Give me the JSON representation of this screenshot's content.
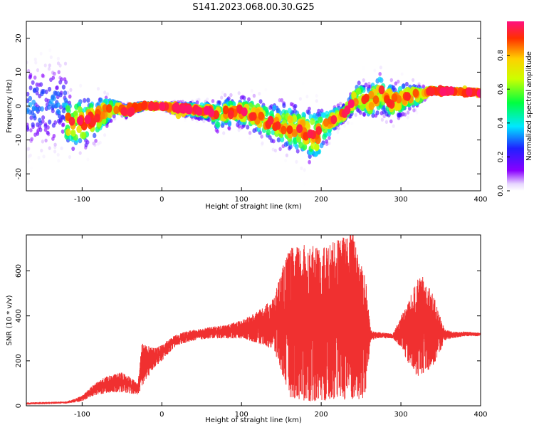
{
  "title": "S141.2023.068.00.30.G25",
  "chart_data": [
    {
      "type": "heatmap",
      "xlabel": "Height of straight line (km)",
      "ylabel": "Frequency (Hz)",
      "xlim": [
        -170,
        400
      ],
      "ylim": [
        -25,
        25
      ],
      "xticks": [
        -100,
        0,
        100,
        200,
        300,
        400
      ],
      "yticks": [
        -20,
        -10,
        0,
        10,
        20
      ],
      "colorbar": {
        "label": "Normalized spectral amplitude",
        "range": [
          0.0,
          1.0
        ],
        "ticks": [
          "0.0",
          "0.2",
          "0.4",
          "0.6",
          "0.8"
        ]
      },
      "ridge": {
        "x": [
          -100,
          -80,
          -65,
          -55,
          -45,
          -35,
          -20,
          0,
          20,
          40,
          60,
          70,
          80,
          100,
          120,
          140,
          160,
          180,
          195,
          205,
          215,
          230,
          245,
          260,
          275,
          290,
          310,
          325,
          335,
          360,
          400
        ],
        "freq": [
          -5,
          -3,
          -1,
          -0.5,
          -1.5,
          -0.5,
          0,
          0,
          -0.8,
          -1.2,
          -1.5,
          -3,
          -2,
          -1.5,
          -3,
          -5,
          -6,
          -8,
          -9,
          -6,
          -4,
          -2,
          3,
          1,
          4,
          1,
          3,
          3,
          4.5,
          4.5,
          4
        ],
        "spread": [
          9,
          7,
          4,
          2,
          2,
          1.5,
          1,
          1,
          2,
          2.5,
          3,
          5,
          5,
          5,
          6,
          7,
          8,
          9,
          9,
          6,
          4,
          3,
          5,
          6,
          7,
          6,
          5,
          3,
          1,
          0.8,
          0.8
        ]
      }
    },
    {
      "type": "area",
      "series_color": "#f03030",
      "xlabel": "Height of straight line (km)",
      "ylabel": "SNR (10 * v/v)",
      "xlim": [
        -170,
        400
      ],
      "ylim": [
        0,
        760
      ],
      "xticks": [
        -100,
        0,
        100,
        200,
        300,
        400
      ],
      "yticks": [
        0,
        200,
        400,
        600
      ],
      "envelope": {
        "x": [
          -170,
          -120,
          -110,
          -100,
          -90,
          -80,
          -70,
          -60,
          -50,
          -40,
          -30,
          -25,
          -20,
          -10,
          0,
          10,
          20,
          30,
          40,
          60,
          80,
          100,
          120,
          140,
          150,
          160,
          180,
          200,
          220,
          240,
          255,
          262,
          270,
          290,
          300,
          310,
          320,
          330,
          340,
          355,
          365,
          380,
          400
        ],
        "low": [
          5,
          10,
          15,
          20,
          40,
          50,
          55,
          60,
          60,
          55,
          50,
          80,
          110,
          170,
          200,
          240,
          270,
          280,
          290,
          300,
          300,
          300,
          280,
          250,
          150,
          40,
          20,
          20,
          30,
          20,
          30,
          290,
          300,
          300,
          260,
          180,
          130,
          150,
          170,
          290,
          300,
          310,
          310
        ],
        "high": [
          15,
          20,
          30,
          45,
          80,
          110,
          130,
          140,
          150,
          130,
          100,
          280,
          270,
          260,
          270,
          300,
          320,
          330,
          340,
          350,
          360,
          380,
          420,
          480,
          600,
          700,
          720,
          700,
          740,
          780,
          600,
          340,
          330,
          320,
          400,
          470,
          560,
          580,
          500,
          340,
          330,
          330,
          325
        ]
      }
    }
  ]
}
